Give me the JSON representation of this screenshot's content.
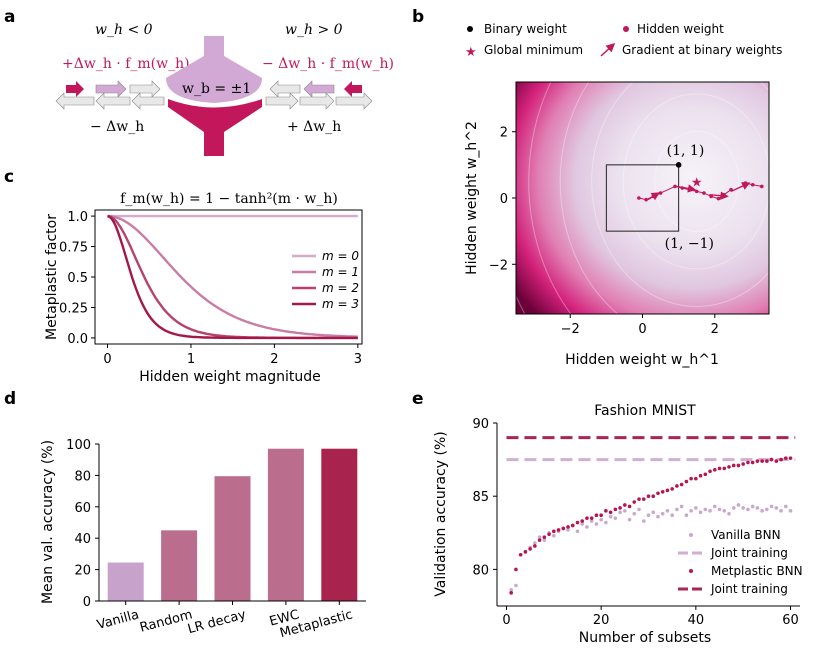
{
  "panels": {
    "a": {
      "letter": "a",
      "left_cond": "w_h < 0",
      "right_cond": "w_h > 0",
      "left_update": "+Δw_h · f_m(w_h)",
      "right_update": "− Δw_h · f_m(w_h)",
      "left_minus": "− Δw_h",
      "right_plus": "+ Δw_h",
      "binary_label": "w_b = ±1",
      "colors": {
        "light": "#d2a8d4",
        "dark": "#c2185b",
        "grey": "#e8e8e8"
      }
    },
    "b": {
      "letter": "b",
      "legend": [
        "Binary weight",
        "Hidden weight",
        "Global minimum",
        "Gradient at binary weights"
      ],
      "chart_data": {
        "type": "contour",
        "xlabel": "Hidden weight w_h^1",
        "ylabel": "Hidden weight w_h^2",
        "xlim": [
          -3.5,
          3.5
        ],
        "ylim": [
          -3.5,
          3.5
        ],
        "xticks": [
          -2,
          0,
          2
        ],
        "yticks": [
          -2,
          0,
          2
        ],
        "tick_labels_x": [
          "−2",
          "0",
          "2"
        ],
        "tick_labels_y": [
          "−2",
          "0",
          "2"
        ],
        "binary_weight": [
          1,
          1
        ],
        "global_minimum": [
          1.5,
          0.5
        ],
        "corner_labels": [
          "(1, 1)",
          "(1, −1)"
        ],
        "square": {
          "x0": -1,
          "x1": 1,
          "y0": -1,
          "y1": 1
        },
        "hidden_trajectory": [
          [
            -0.1,
            0.0
          ],
          [
            0.1,
            -0.05
          ],
          [
            0.3,
            0.05
          ],
          [
            0.5,
            0.15
          ],
          [
            0.9,
            0.35
          ],
          [
            1.1,
            0.3
          ],
          [
            1.3,
            0.25
          ],
          [
            1.5,
            0.2
          ],
          [
            1.7,
            0.15
          ],
          [
            1.9,
            0.05
          ],
          [
            2.1,
            -0.02
          ],
          [
            2.25,
            0.1
          ],
          [
            2.45,
            0.25
          ],
          [
            2.85,
            0.45
          ],
          [
            3.05,
            0.4
          ],
          [
            3.3,
            0.35
          ]
        ],
        "arrows": [
          [
            0.15,
            -0.05,
            0.45,
            0.15
          ],
          [
            0.95,
            0.35,
            1.45,
            0.25
          ],
          [
            1.85,
            0.1,
            2.35,
            0.05
          ],
          [
            2.45,
            0.2,
            2.95,
            0.45
          ]
        ]
      }
    },
    "c": {
      "letter": "c",
      "title": "f_m(w_h) = 1 − tanh²(m · w_h)",
      "chart_data": {
        "type": "line",
        "xlabel": "Hidden weight magnitude",
        "ylabel": "Metaplastic factor",
        "xlim": [
          -0.15,
          3.05
        ],
        "ylim": [
          -0.05,
          1.05
        ],
        "xticks": [
          0,
          1,
          2,
          3
        ],
        "yticks": [
          0.0,
          0.25,
          0.5,
          0.75,
          1.0
        ],
        "tick_labels_x": [
          "0",
          "1",
          "2",
          "3"
        ],
        "tick_labels_y": [
          "0.0",
          "0.25",
          "0.5",
          "0.75",
          "1.0"
        ],
        "series": [
          {
            "name": "m = 0",
            "m": 0,
            "color": "#d7a9cf"
          },
          {
            "name": "m = 1",
            "m": 1,
            "color": "#c97ca6"
          },
          {
            "name": "m = 2",
            "m": 2,
            "color": "#b8426e"
          },
          {
            "name": "m = 3",
            "m": 3,
            "color": "#a31848"
          }
        ]
      }
    },
    "d": {
      "letter": "d",
      "chart_data": {
        "type": "bar",
        "categories": [
          "Vanilla",
          "Random",
          "LR decay",
          "EWC",
          "Metaplastic"
        ],
        "values": [
          24.5,
          45,
          79.5,
          97,
          97
        ],
        "colors": [
          "#c7a3cb",
          "#bb6d8e",
          "#bb6d8e",
          "#bb6d8e",
          "#a8244e"
        ],
        "ylabel": "Mean val. accuracy (%)",
        "ylim": [
          0,
          100
        ],
        "yticks": [
          0,
          20,
          40,
          60,
          80,
          100
        ],
        "tick_labels_y": [
          "0",
          "20",
          "40",
          "60",
          "80",
          "100"
        ]
      }
    },
    "e": {
      "letter": "e",
      "chart_data": {
        "type": "scatter",
        "title": "Fashion MNIST",
        "xlabel": "Number of subsets",
        "ylabel": "Validation accuracy (%)",
        "xlim": [
          -2,
          62
        ],
        "ylim": [
          77.5,
          90
        ],
        "xticks": [
          0,
          20,
          40,
          60
        ],
        "yticks": [
          80,
          85,
          90
        ],
        "tick_labels_x": [
          "0",
          "20",
          "40",
          "60"
        ],
        "tick_labels_y": [
          "80",
          "85",
          "90"
        ],
        "legend": [
          "Vanilla BNN",
          "Joint training",
          "Metplastic BNN",
          "Joint training"
        ],
        "joint_vanilla": 87.5,
        "joint_meta": 89.0,
        "series": [
          {
            "name": "Vanilla BNN",
            "color": "#c9a7cf",
            "x": [
              1,
              2,
              3,
              4,
              5,
              6,
              7,
              8,
              9,
              10,
              11,
              12,
              13,
              14,
              15,
              16,
              17,
              18,
              19,
              20,
              21,
              22,
              23,
              24,
              25,
              26,
              27,
              28,
              29,
              30,
              31,
              32,
              33,
              34,
              35,
              36,
              37,
              38,
              39,
              40,
              41,
              42,
              43,
              44,
              45,
              46,
              47,
              48,
              49,
              50,
              51,
              52,
              53,
              54,
              55,
              56,
              57,
              58,
              59,
              60
            ],
            "y": [
              78.6,
              78.9,
              81.0,
              81.2,
              81.5,
              81.8,
              82.2,
              82.0,
              82.5,
              82.3,
              82.6,
              82.8,
              82.7,
              83.0,
              82.6,
              83.1,
              82.9,
              83.3,
              83.1,
              83.4,
              83.2,
              83.6,
              83.5,
              83.9,
              84.0,
              83.4,
              83.8,
              84.1,
              83.3,
              83.7,
              83.9,
              83.6,
              83.8,
              84.0,
              83.7,
              84.1,
              84.3,
              83.7,
              84.0,
              84.2,
              83.9,
              84.1,
              84.0,
              84.3,
              84.1,
              84.0,
              83.8,
              84.2,
              84.4,
              84.2,
              84.1,
              84.3,
              84.2,
              84.0,
              84.1,
              84.3,
              84.2,
              84.0,
              84.3,
              84.0
            ]
          },
          {
            "name": "Metplastic BNN",
            "color": "#b8154f",
            "x": [
              1,
              2,
              3,
              4,
              5,
              6,
              7,
              8,
              9,
              10,
              11,
              12,
              13,
              14,
              15,
              16,
              17,
              18,
              19,
              20,
              21,
              22,
              23,
              24,
              25,
              26,
              27,
              28,
              29,
              30,
              31,
              32,
              33,
              34,
              35,
              36,
              37,
              38,
              39,
              40,
              41,
              42,
              43,
              44,
              45,
              46,
              47,
              48,
              49,
              50,
              51,
              52,
              53,
              54,
              55,
              56,
              57,
              58,
              59,
              60
            ],
            "y": [
              78.4,
              80.0,
              81.0,
              81.2,
              81.4,
              81.6,
              82.0,
              82.2,
              82.4,
              82.6,
              82.7,
              82.8,
              82.9,
              83.0,
              83.2,
              83.3,
              83.5,
              83.5,
              83.7,
              83.7,
              84.0,
              83.9,
              84.1,
              84.2,
              84.4,
              84.3,
              84.6,
              84.8,
              84.8,
              85.0,
              85.0,
              85.2,
              85.3,
              85.4,
              85.5,
              85.7,
              85.8,
              86.0,
              86.2,
              86.2,
              86.4,
              86.5,
              86.7,
              86.8,
              86.9,
              86.9,
              87.0,
              87.1,
              87.1,
              87.2,
              87.3,
              87.3,
              87.4,
              87.4,
              87.4,
              87.5,
              87.4,
              87.5,
              87.6,
              87.6
            ]
          }
        ]
      }
    }
  }
}
